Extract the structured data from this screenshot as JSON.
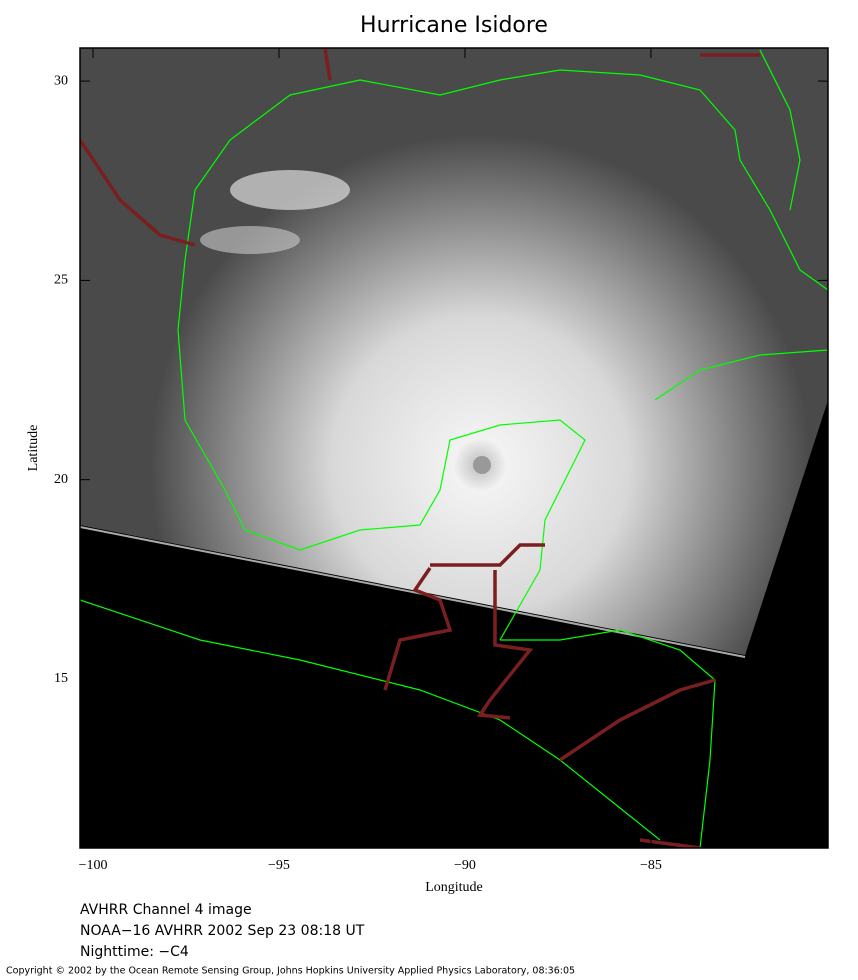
{
  "chart_data": {
    "type": "map",
    "title": "Hurricane Isidore",
    "x_label": "Longitude",
    "y_label": "Latitude",
    "xlim": [
      -100.35,
      -80.24
    ],
    "ylim": [
      10.76,
      30.83
    ],
    "xticks": [
      {
        "value": -100,
        "label": "−100"
      },
      {
        "value": -95,
        "label": "−95"
      },
      {
        "value": -90,
        "label": "−90"
      },
      {
        "value": -85,
        "label": "−85"
      }
    ],
    "yticks": [
      15,
      20,
      25,
      30
    ],
    "captions": [
      "AVHRR Channel 4 image",
      "NOAA−16 AVHRR 2002 Sep 23 08:18 UT",
      "Nighttime: −C4"
    ],
    "copyright": "Copyright © 2002 by the Ocean Remote Sensing Group, Johns Hopkins University Applied Physics Laboratory, 08:36:05"
  }
}
